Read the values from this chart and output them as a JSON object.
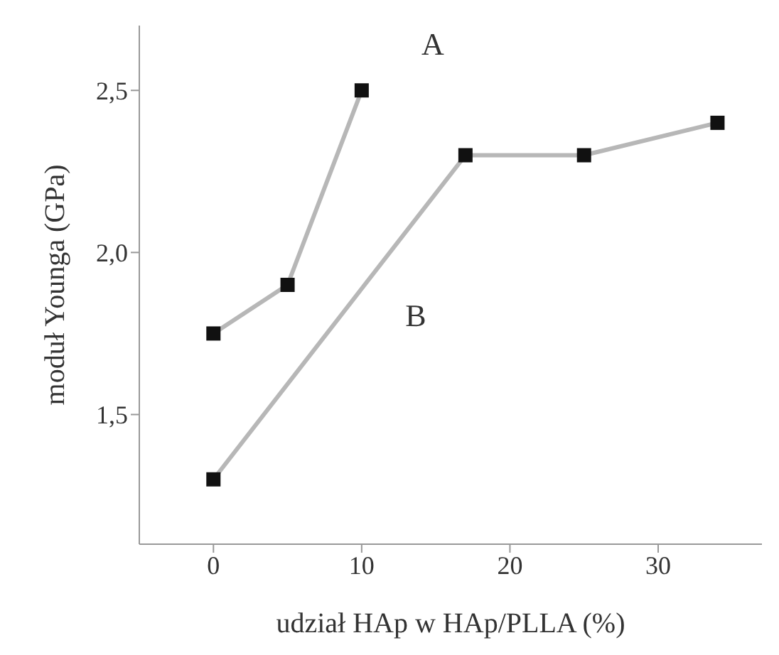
{
  "chart_data": {
    "type": "line",
    "xlabel": "udział HAp w HAp/PLLA (%)",
    "ylabel": "moduł Younga (GPa)",
    "xlim": [
      -5,
      37
    ],
    "xticks": [
      0,
      10,
      20,
      30
    ],
    "ylim": [
      1.1,
      2.7
    ],
    "yticks": [
      {
        "value": 1.5,
        "label": "1,5"
      },
      {
        "value": 2.0,
        "label": "2,0"
      },
      {
        "value": 2.5,
        "label": "2,5"
      }
    ],
    "marker": "square",
    "grid": false,
    "line_style": "solid",
    "series": [
      {
        "name": "A",
        "color": "#111111",
        "x": [
          0,
          5,
          10
        ],
        "values": [
          1.75,
          1.9,
          2.5
        ]
      },
      {
        "name": "B",
        "color": "#111111",
        "x": [
          0,
          17,
          25,
          34
        ],
        "values": [
          1.3,
          2.3,
          2.3,
          2.4
        ]
      }
    ]
  }
}
